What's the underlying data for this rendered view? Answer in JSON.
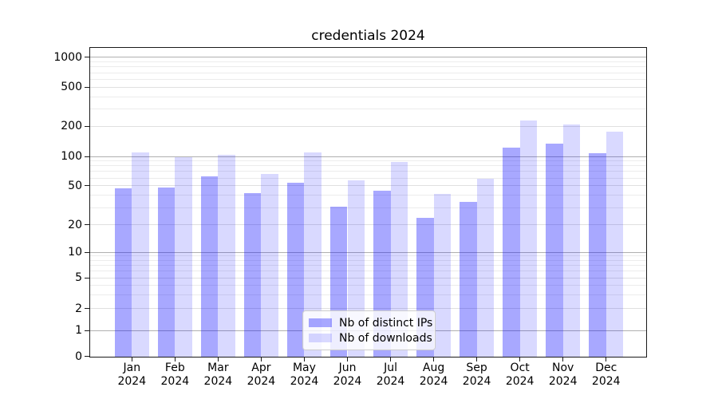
{
  "chart_data": {
    "type": "bar",
    "title": "credentials 2024",
    "categories": [
      "Jan",
      "Feb",
      "Mar",
      "Apr",
      "May",
      "Jun",
      "Jul",
      "Aug",
      "Sep",
      "Oct",
      "Nov",
      "Dec"
    ],
    "x_year": "2024",
    "series": [
      {
        "name": "Nb of distinct IPs",
        "fill": "rgba(0,0,255,0.34)",
        "hex_on_white": "#a8a8ff",
        "values": [
          48,
          49,
          63,
          43,
          55,
          31,
          45,
          24,
          35,
          125,
          137,
          110
        ]
      },
      {
        "name": "Nb of downloads",
        "fill": "rgba(0,0,255,0.15)",
        "hex_on_white": "#d9d9ff",
        "values": [
          112,
          100,
          106,
          67,
          112,
          58,
          90,
          42,
          60,
          235,
          214,
          181
        ]
      }
    ],
    "y_scale": "symlog",
    "y_ticks": [
      0,
      1,
      2,
      5,
      10,
      20,
      50,
      100,
      200,
      500,
      1000
    ],
    "y_tick_labels": [
      "0",
      "1",
      "2",
      "5",
      "10",
      "20",
      "50",
      "100",
      "200",
      "500",
      "1000"
    ],
    "ylim": [
      0,
      1300
    ],
    "grid": true,
    "legend_position": "lower center",
    "colors": {
      "grid_major": "#b0b0b0",
      "grid_minor": "#e0e0e0",
      "grid_faint": "#ececec",
      "spine": "#1a1a1a",
      "text": "#000000"
    }
  }
}
